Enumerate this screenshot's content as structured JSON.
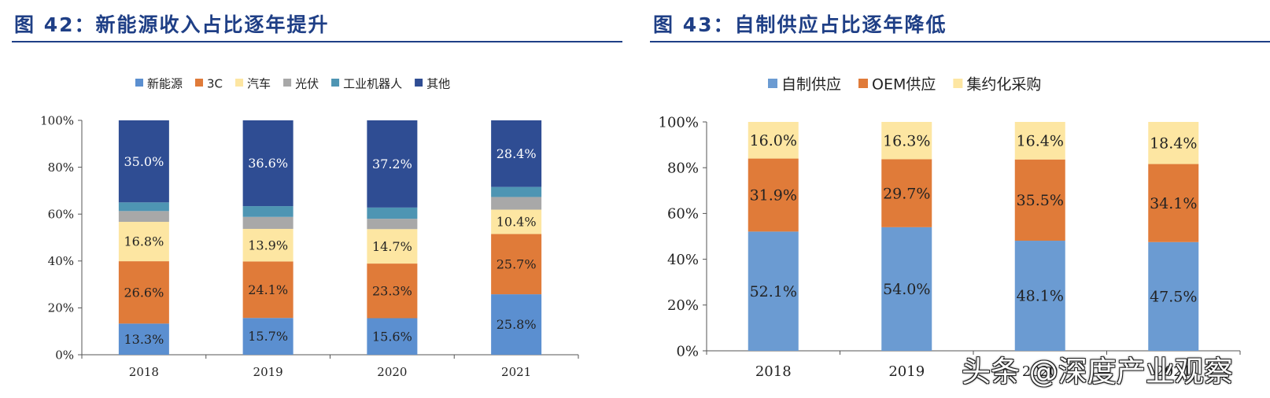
{
  "charts": [
    {
      "title": "图 42：新能源收入占比逐年提升",
      "chart_data": {
        "type": "bar",
        "stacked": true,
        "categories": [
          "2018",
          "2019",
          "2020",
          "2021"
        ],
        "series": [
          {
            "name": "新能源",
            "color": "#5b8fd0",
            "values": [
              13.3,
              15.7,
              15.6,
              25.8
            ],
            "labels": [
              "13.3%",
              "15.7%",
              "15.6%",
              "25.8%"
            ]
          },
          {
            "name": "3C",
            "color": "#e07b39",
            "values": [
              26.6,
              24.1,
              23.3,
              25.7
            ],
            "labels": [
              "26.6%",
              "24.1%",
              "23.3%",
              "25.7%"
            ]
          },
          {
            "name": "汽车",
            "color": "#fde6a2",
            "values": [
              16.8,
              13.9,
              14.7,
              10.4
            ],
            "labels": [
              "16.8%",
              "13.9%",
              "14.7%",
              "10.4%"
            ]
          },
          {
            "name": "光伏",
            "color": "#a8a8a8",
            "values": [
              4.6,
              5.1,
              4.4,
              5.4
            ],
            "labels": [
              "",
              "",
              "",
              ""
            ]
          },
          {
            "name": "工业机器人",
            "color": "#4e95b3",
            "values": [
              3.7,
              4.6,
              4.8,
              4.3
            ],
            "labels": [
              "",
              "",
              "",
              ""
            ]
          },
          {
            "name": "其他",
            "color": "#2f4d93",
            "values": [
              35.0,
              36.6,
              37.2,
              28.4
            ],
            "labels": [
              "35.0%",
              "36.6%",
              "37.2%",
              "28.4%"
            ]
          }
        ],
        "yticks": [
          "0%",
          "20%",
          "40%",
          "60%",
          "80%",
          "100%"
        ],
        "ylim": [
          0,
          100
        ],
        "legend_position": "top"
      }
    },
    {
      "title": "图 43：自制供应占比逐年降低",
      "chart_data": {
        "type": "bar",
        "stacked": true,
        "categories": [
          "2018",
          "2019",
          "2020",
          "2021"
        ],
        "series": [
          {
            "name": "自制供应",
            "color": "#6b9bd2",
            "values": [
              52.1,
              54.0,
              48.1,
              47.5
            ],
            "labels": [
              "52.1%",
              "54.0%",
              "48.1%",
              "47.5%"
            ]
          },
          {
            "name": "OEM供应",
            "color": "#e07b39",
            "values": [
              31.9,
              29.7,
              35.5,
              34.1
            ],
            "labels": [
              "31.9%",
              "29.7%",
              "35.5%",
              "34.1%"
            ]
          },
          {
            "name": "集约化采购",
            "color": "#fde6a2",
            "values": [
              16.0,
              16.3,
              16.4,
              18.4
            ],
            "labels": [
              "16.0%",
              "16.3%",
              "16.4%",
              "18.4%"
            ]
          }
        ],
        "yticks": [
          "0%",
          "20%",
          "40%",
          "60%",
          "80%",
          "100%"
        ],
        "ylim": [
          0,
          100
        ],
        "legend_position": "top"
      }
    }
  ],
  "watermark": "头条 @深度产业观察"
}
